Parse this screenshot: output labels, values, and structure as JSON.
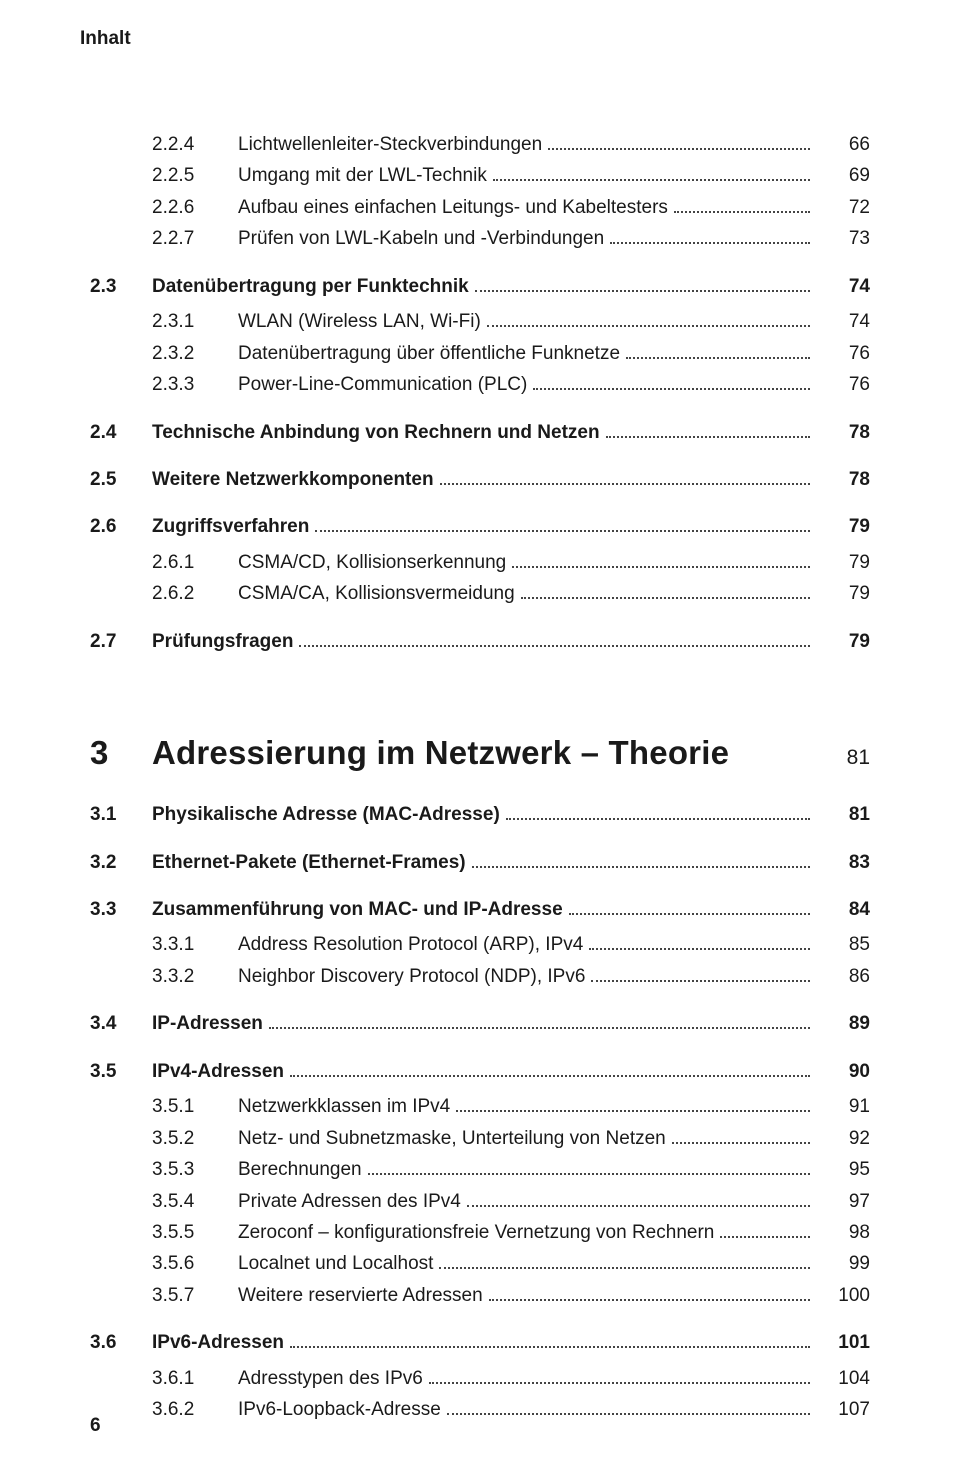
{
  "runningHead": "Inhalt",
  "block1": [
    {
      "type": "sub",
      "num": "2.2.4",
      "title": "Lichtwellenleiter-Steckverbindungen",
      "page": "66"
    },
    {
      "type": "sub",
      "num": "2.2.5",
      "title": "Umgang mit der LWL-Technik",
      "page": "69"
    },
    {
      "type": "sub",
      "num": "2.2.6",
      "title": "Aufbau eines einfachen Leitungs- und Kabeltesters",
      "page": "72"
    },
    {
      "type": "sub",
      "num": "2.2.7",
      "title": "Prüfen von LWL-Kabeln und -Verbindungen",
      "page": "73"
    },
    {
      "type": "sec",
      "num": "2.3",
      "title": "Datenübertragung per Funktechnik",
      "page": "74"
    },
    {
      "type": "sub",
      "num": "2.3.1",
      "title": "WLAN (Wireless LAN, Wi-Fi)",
      "page": "74"
    },
    {
      "type": "sub",
      "num": "2.3.2",
      "title": "Datenübertragung über öffentliche Funknetze",
      "page": "76"
    },
    {
      "type": "sub",
      "num": "2.3.3",
      "title": "Power-Line-Communication (PLC)",
      "page": "76"
    },
    {
      "type": "sec",
      "num": "2.4",
      "title": "Technische Anbindung von Rechnern und Netzen",
      "page": "78"
    },
    {
      "type": "sec",
      "num": "2.5",
      "title": "Weitere Netzwerkkomponenten",
      "page": "78"
    },
    {
      "type": "sec",
      "num": "2.6",
      "title": "Zugriffsverfahren",
      "page": "79"
    },
    {
      "type": "sub",
      "num": "2.6.1",
      "title": "CSMA/CD, Kollisionserkennung",
      "page": "79"
    },
    {
      "type": "sub",
      "num": "2.6.2",
      "title": "CSMA/CA, Kollisionsvermeidung",
      "page": "79"
    },
    {
      "type": "sec",
      "num": "2.7",
      "title": "Prüfungsfragen",
      "page": "79"
    }
  ],
  "chapter": {
    "num": "3",
    "title": "Adressierung im Netzwerk – Theorie",
    "page": "81"
  },
  "block2": [
    {
      "type": "sec",
      "num": "3.1",
      "title": "Physikalische Adresse (MAC-Adresse)",
      "page": "81"
    },
    {
      "type": "sec",
      "num": "3.2",
      "title": "Ethernet-Pakete (Ethernet-Frames)",
      "page": "83"
    },
    {
      "type": "sec",
      "num": "3.3",
      "title": "Zusammenführung von MAC- und IP-Adresse",
      "page": "84"
    },
    {
      "type": "sub",
      "num": "3.3.1",
      "title": "Address Resolution Protocol (ARP), IPv4",
      "page": "85"
    },
    {
      "type": "sub",
      "num": "3.3.2",
      "title": "Neighbor Discovery Protocol (NDP), IPv6",
      "page": "86"
    },
    {
      "type": "sec",
      "num": "3.4",
      "title": "IP-Adressen",
      "page": "89"
    },
    {
      "type": "sec",
      "num": "3.5",
      "title": "IPv4-Adressen",
      "page": "90"
    },
    {
      "type": "sub",
      "num": "3.5.1",
      "title": "Netzwerkklassen im IPv4",
      "page": "91"
    },
    {
      "type": "sub",
      "num": "3.5.2",
      "title": "Netz- und Subnetzmaske, Unterteilung von Netzen",
      "page": "92"
    },
    {
      "type": "sub",
      "num": "3.5.3",
      "title": "Berechnungen",
      "page": "95"
    },
    {
      "type": "sub",
      "num": "3.5.4",
      "title": "Private Adressen des IPv4",
      "page": "97"
    },
    {
      "type": "sub",
      "num": "3.5.5",
      "title": "Zeroconf – konfigurationsfreie Vernetzung von Rechnern",
      "page": "98"
    },
    {
      "type": "sub",
      "num": "3.5.6",
      "title": "Localnet und Localhost",
      "page": "99"
    },
    {
      "type": "sub",
      "num": "3.5.7",
      "title": "Weitere reservierte Adressen",
      "page": "100"
    },
    {
      "type": "sec",
      "num": "3.6",
      "title": "IPv6-Adressen",
      "page": "101"
    },
    {
      "type": "sub",
      "num": "3.6.1",
      "title": "Adresstypen des IPv6",
      "page": "104"
    },
    {
      "type": "sub",
      "num": "3.6.2",
      "title": "IPv6-Loopback-Adresse",
      "page": "107"
    }
  ],
  "footerPage": "6"
}
